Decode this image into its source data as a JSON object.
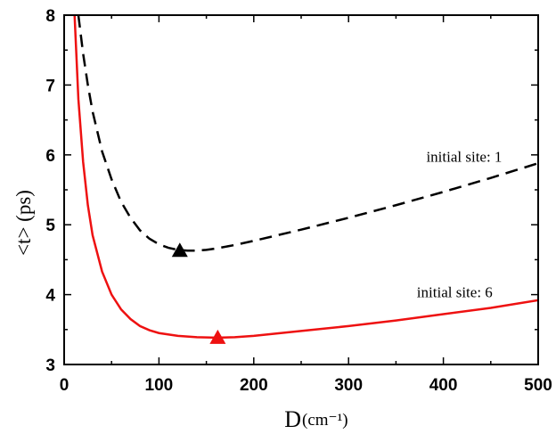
{
  "chart_data": {
    "type": "line",
    "xlabel": "D",
    "xlabel_unit": "(cm⁻¹)",
    "ylabel": "<t> (ps)",
    "xlim": [
      0,
      500
    ],
    "ylim": [
      3,
      8
    ],
    "x_ticks": [
      0,
      100,
      200,
      300,
      400,
      500
    ],
    "y_ticks": [
      3,
      4,
      5,
      6,
      7,
      8
    ],
    "grid": false,
    "series": [
      {
        "name": "initial site: 1",
        "color": "#000000",
        "dash": "dashed",
        "x": [
          15,
          20,
          25,
          30,
          40,
          50,
          60,
          70,
          80,
          90,
          100,
          110,
          120,
          130,
          140,
          150,
          160,
          180,
          200,
          250,
          300,
          350,
          400,
          450,
          500
        ],
        "y": [
          8.0,
          7.45,
          7.0,
          6.62,
          6.05,
          5.65,
          5.33,
          5.1,
          4.92,
          4.8,
          4.72,
          4.67,
          4.64,
          4.63,
          4.63,
          4.64,
          4.66,
          4.71,
          4.77,
          4.93,
          5.1,
          5.28,
          5.47,
          5.67,
          5.88
        ],
        "minimum": {
          "x": 122,
          "y": 4.63
        }
      },
      {
        "name": "initial site: 6",
        "color": "#ee1111",
        "dash": "solid",
        "x": [
          11,
          15,
          20,
          25,
          30,
          40,
          50,
          60,
          70,
          80,
          90,
          100,
          120,
          140,
          160,
          180,
          200,
          250,
          300,
          350,
          400,
          450,
          500
        ],
        "y": [
          8.0,
          6.8,
          5.9,
          5.28,
          4.85,
          4.33,
          4.0,
          3.79,
          3.65,
          3.55,
          3.49,
          3.45,
          3.41,
          3.39,
          3.385,
          3.39,
          3.41,
          3.48,
          3.55,
          3.63,
          3.72,
          3.81,
          3.92
        ],
        "minimum": {
          "x": 162,
          "y": 3.385
        }
      }
    ],
    "annotations": [
      {
        "text": "initial site: 1",
        "x": 382,
        "y": 5.9
      },
      {
        "text": "initial site: 6",
        "x": 372,
        "y": 3.96
      }
    ]
  }
}
